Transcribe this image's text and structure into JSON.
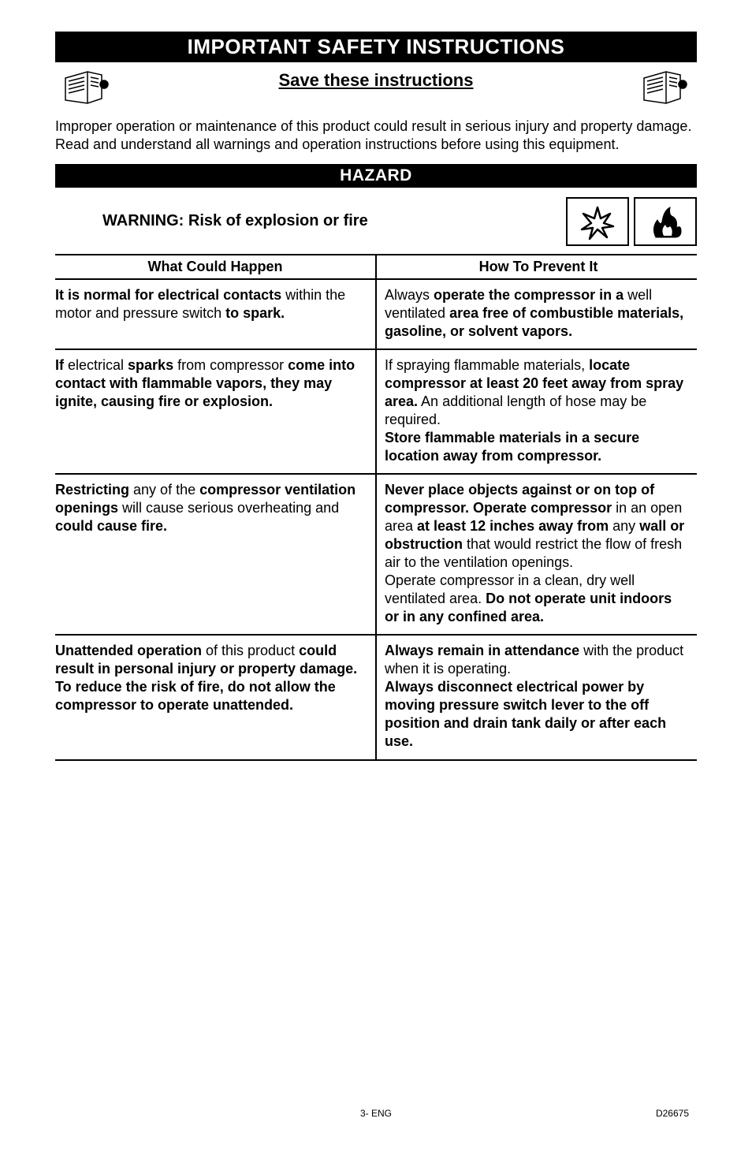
{
  "banner_title": "IMPORTANT SAFETY INSTRUCTIONS",
  "subheader_title": "Save these instructions",
  "intro_text": "Improper operation or maintenance of this product could result in serious injury and property damage. Read and understand all warnings and operation instructions before using this equipment.",
  "hazard_title": "HAZARD",
  "warning_heading": "WARNING: Risk of explosion or fire",
  "table": {
    "headers": [
      "What Could Happen",
      "How To Prevent It"
    ],
    "rows": [
      {
        "left_html": "<b>It is normal for electrical contacts</b> within the motor and pressure switch <b>to spark.</b>",
        "right_html": "Always <b>operate the compressor in a</b> well ventilated <b>area free of combustible materials, gasoline, or solvent vapors.</b>"
      },
      {
        "left_html": "<b>If</b> electrical <b>sparks</b> from compressor <b>come into contact with flammable vapors, they may ignite, causing fire or explosion.</b>",
        "right_html": "If spraying flammable materials, <b>locate compressor at least 20 feet away from spray area.</b> An additional length of hose may be required.<br><b>Store flammable materials in a secure location away from compressor.</b>"
      },
      {
        "left_html": "<b>Restricting</b> any of the <b>compressor ventilation openings</b> will cause serious overheating and <b>could cause fire.</b>",
        "right_html": "<b>Never place objects against or on top of compressor. Operate compressor</b> in an open area <b>at least 12 inches away from</b> any <b>wall or obstruction</b> that would restrict the flow of fresh air to  the ventilation openings.<br>Operate compressor in a clean, dry well ventilated area. <b>Do not operate unit indoors or in any confined area.</b>"
      },
      {
        "left_html": "<b>Unattended operation</b> of this product <b>could result in personal injury or property damage. To reduce the risk of fire, do not allow the compressor to operate unattended.</b>",
        "right_html": "<b>Always remain in attendance</b> with the product when it is operating.<br><b>Always disconnect electrical power by moving pressure switch lever to the off position and drain tank daily or after each use.</b>"
      }
    ]
  },
  "footer": {
    "center": "3- ENG",
    "right": "D26675"
  }
}
